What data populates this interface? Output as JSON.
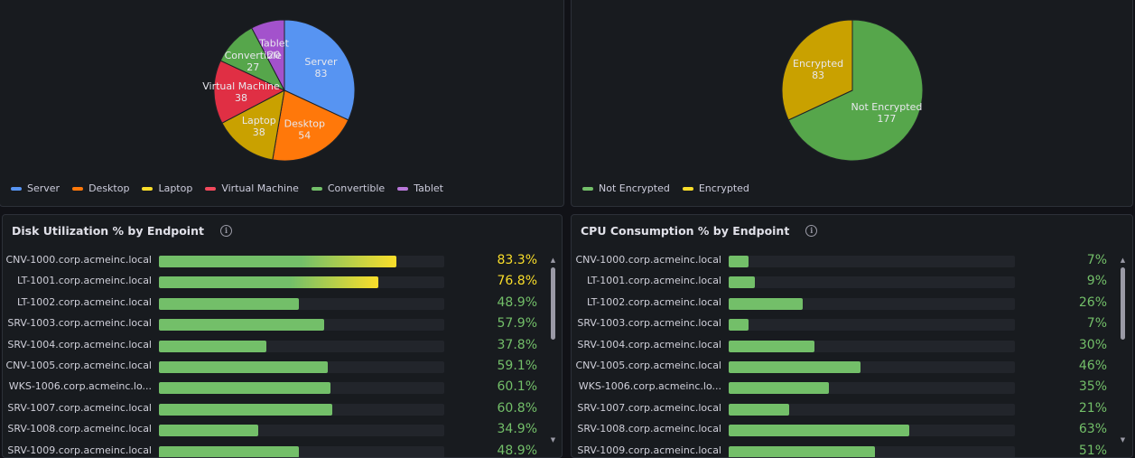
{
  "type_panel": {
    "chart_data": {
      "type": "pie",
      "slices": [
        {
          "name": "Server",
          "value": 83,
          "color": "#5794f2"
        },
        {
          "name": "Desktop",
          "value": 54,
          "color": "#ff780a"
        },
        {
          "name": "Laptop",
          "value": 38,
          "color": "#c9a100"
        },
        {
          "name": "Virtual Machine",
          "value": 38,
          "color": "#e02f44"
        },
        {
          "name": "Convertible",
          "value": 27,
          "color": "#56a64b"
        },
        {
          "name": "Tablet",
          "value": 20,
          "color": "#a352cc"
        }
      ]
    },
    "legend": [
      {
        "label": "Server",
        "color": "#5794f2"
      },
      {
        "label": "Desktop",
        "color": "#ff780a"
      },
      {
        "label": "Laptop",
        "color": "#fade2a"
      },
      {
        "label": "Virtual Machine",
        "color": "#f2495c"
      },
      {
        "label": "Convertible",
        "color": "#73bf69"
      },
      {
        "label": "Tablet",
        "color": "#b877d9"
      }
    ]
  },
  "encryption_panel": {
    "chart_data": {
      "type": "pie",
      "slices": [
        {
          "name": "Not Encrypted",
          "value": 177,
          "color": "#56a64b"
        },
        {
          "name": "Encrypted",
          "value": 83,
          "color": "#c9a100"
        }
      ]
    },
    "legend": [
      {
        "label": "Not Encrypted",
        "color": "#73bf69"
      },
      {
        "label": "Encrypted",
        "color": "#fade2a"
      }
    ]
  },
  "disk_panel": {
    "title": "Disk Utilization % by Endpoint",
    "rows": [
      {
        "label": "CNV-1000.corp.acmeinc.local",
        "value": 83.3,
        "display": "83.3%"
      },
      {
        "label": "LT-1001.corp.acmeinc.local",
        "value": 76.8,
        "display": "76.8%"
      },
      {
        "label": "LT-1002.corp.acmeinc.local",
        "value": 48.9,
        "display": "48.9%"
      },
      {
        "label": "SRV-1003.corp.acmeinc.local",
        "value": 57.9,
        "display": "57.9%"
      },
      {
        "label": "SRV-1004.corp.acmeinc.local",
        "value": 37.8,
        "display": "37.8%"
      },
      {
        "label": "CNV-1005.corp.acmeinc.local",
        "value": 59.1,
        "display": "59.1%"
      },
      {
        "label": "WKS-1006.corp.acmeinc.lo...",
        "value": 60.1,
        "display": "60.1%"
      },
      {
        "label": "SRV-1007.corp.acmeinc.local",
        "value": 60.8,
        "display": "60.8%"
      },
      {
        "label": "SRV-1008.corp.acmeinc.local",
        "value": 34.9,
        "display": "34.9%"
      },
      {
        "label": "SRV-1009.corp.acmeinc.local",
        "value": 48.9,
        "display": "48.9%"
      }
    ]
  },
  "cpu_panel": {
    "title": "CPU Consumption % by Endpoint",
    "rows": [
      {
        "label": "CNV-1000.corp.acmeinc.local",
        "value": 7,
        "display": "7%"
      },
      {
        "label": "LT-1001.corp.acmeinc.local",
        "value": 9,
        "display": "9%"
      },
      {
        "label": "LT-1002.corp.acmeinc.local",
        "value": 26,
        "display": "26%"
      },
      {
        "label": "SRV-1003.corp.acmeinc.local",
        "value": 7,
        "display": "7%"
      },
      {
        "label": "SRV-1004.corp.acmeinc.local",
        "value": 30,
        "display": "30%"
      },
      {
        "label": "CNV-1005.corp.acmeinc.local",
        "value": 46,
        "display": "46%"
      },
      {
        "label": "WKS-1006.corp.acmeinc.lo...",
        "value": 35,
        "display": "35%"
      },
      {
        "label": "SRV-1007.corp.acmeinc.local",
        "value": 21,
        "display": "21%"
      },
      {
        "label": "SRV-1008.corp.acmeinc.local",
        "value": 63,
        "display": "63%"
      },
      {
        "label": "SRV-1009.corp.acmeinc.local",
        "value": 51,
        "display": "51%"
      }
    ]
  },
  "colors": {
    "ok": "#73bf69",
    "warn": "#fade2a"
  }
}
